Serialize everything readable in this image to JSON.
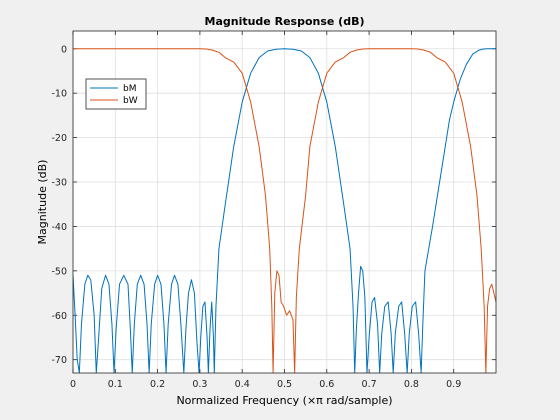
{
  "figure": {
    "background": "#f0f0f0"
  },
  "chart_data": {
    "type": "line",
    "title": "Magnitude Response (dB)",
    "xlabel": "Normalized Frequency (×π rad/sample)",
    "ylabel": "Magnitude (dB)",
    "xlim": [
      0,
      1
    ],
    "ylim": [
      -73,
      4
    ],
    "xticks": [
      0,
      0.1,
      0.2,
      0.3,
      0.4,
      0.5,
      0.6,
      0.7,
      0.8,
      0.9
    ],
    "xtick_labels": [
      "0",
      "0.1",
      "0.2",
      "0.3",
      "0.4",
      "0.5",
      "0.6",
      "0.7",
      "0.8",
      "0.9"
    ],
    "yticks": [
      0,
      -10,
      -20,
      -30,
      -40,
      -50,
      -60,
      -70
    ],
    "ytick_labels": [
      "0",
      "-10",
      "-20",
      "-30",
      "-40",
      "-50",
      "-60",
      "-70"
    ],
    "grid": true,
    "legend_position": "top-left",
    "series": [
      {
        "name": "bM",
        "color": "#0072BD",
        "points": [
          [
            0,
            -51
          ],
          [
            0.005,
            -60
          ],
          [
            0.01,
            -70
          ],
          [
            0.015,
            -73
          ],
          [
            0.02,
            -62
          ],
          [
            0.028,
            -53
          ],
          [
            0.035,
            -51
          ],
          [
            0.042,
            -52
          ],
          [
            0.05,
            -60
          ],
          [
            0.055,
            -73
          ],
          [
            0.06,
            -66
          ],
          [
            0.068,
            -54
          ],
          [
            0.077,
            -51
          ],
          [
            0.085,
            -53
          ],
          [
            0.092,
            -62
          ],
          [
            0.097,
            -73
          ],
          [
            0.102,
            -63
          ],
          [
            0.11,
            -53
          ],
          [
            0.12,
            -51
          ],
          [
            0.13,
            -53
          ],
          [
            0.136,
            -64
          ],
          [
            0.14,
            -73
          ],
          [
            0.145,
            -62
          ],
          [
            0.152,
            -53
          ],
          [
            0.16,
            -51
          ],
          [
            0.168,
            -53
          ],
          [
            0.175,
            -62
          ],
          [
            0.18,
            -73
          ],
          [
            0.185,
            -62
          ],
          [
            0.193,
            -53
          ],
          [
            0.2,
            -51
          ],
          [
            0.208,
            -53
          ],
          [
            0.215,
            -62
          ],
          [
            0.22,
            -73
          ],
          [
            0.225,
            -62
          ],
          [
            0.233,
            -53
          ],
          [
            0.24,
            -51
          ],
          [
            0.248,
            -53
          ],
          [
            0.255,
            -62
          ],
          [
            0.262,
            -73
          ],
          [
            0.267,
            -63
          ],
          [
            0.273,
            -55
          ],
          [
            0.28,
            -52
          ],
          [
            0.287,
            -55
          ],
          [
            0.293,
            -66
          ],
          [
            0.298,
            -73
          ],
          [
            0.302,
            -65
          ],
          [
            0.307,
            -58
          ],
          [
            0.312,
            -57
          ],
          [
            0.317,
            -65
          ],
          [
            0.32,
            -73
          ],
          [
            0.324,
            -63
          ],
          [
            0.328,
            -57
          ],
          [
            0.332,
            -65
          ],
          [
            0.334,
            -73
          ],
          [
            0.338,
            -58
          ],
          [
            0.345,
            -45
          ],
          [
            0.36,
            -35
          ],
          [
            0.38,
            -22
          ],
          [
            0.4,
            -12
          ],
          [
            0.42,
            -5.5
          ],
          [
            0.44,
            -2
          ],
          [
            0.46,
            -0.5
          ],
          [
            0.48,
            -0.1
          ],
          [
            0.5,
            0
          ],
          [
            0.52,
            -0.1
          ],
          [
            0.54,
            -0.5
          ],
          [
            0.56,
            -2
          ],
          [
            0.58,
            -5.5
          ],
          [
            0.6,
            -12
          ],
          [
            0.62,
            -22
          ],
          [
            0.64,
            -35
          ],
          [
            0.655,
            -45
          ],
          [
            0.662,
            -58
          ],
          [
            0.666,
            -73
          ],
          [
            0.67,
            -63
          ],
          [
            0.675,
            -55
          ],
          [
            0.68,
            -49
          ],
          [
            0.685,
            -50
          ],
          [
            0.69,
            -56
          ],
          [
            0.695,
            -73
          ],
          [
            0.7,
            -65
          ],
          [
            0.707,
            -57
          ],
          [
            0.713,
            -56
          ],
          [
            0.72,
            -62
          ],
          [
            0.725,
            -73
          ],
          [
            0.73,
            -64
          ],
          [
            0.737,
            -58
          ],
          [
            0.745,
            -57
          ],
          [
            0.752,
            -64
          ],
          [
            0.757,
            -73
          ],
          [
            0.762,
            -64
          ],
          [
            0.77,
            -58
          ],
          [
            0.777,
            -57
          ],
          [
            0.784,
            -64
          ],
          [
            0.79,
            -73
          ],
          [
            0.795,
            -64
          ],
          [
            0.802,
            -58
          ],
          [
            0.81,
            -57
          ],
          [
            0.817,
            -64
          ],
          [
            0.823,
            -73
          ],
          [
            0.827,
            -62
          ],
          [
            0.832,
            -50
          ],
          [
            0.85,
            -40
          ],
          [
            0.87,
            -28
          ],
          [
            0.89,
            -16
          ],
          [
            0.9,
            -12
          ],
          [
            0.915,
            -7
          ],
          [
            0.93,
            -3.5
          ],
          [
            0.945,
            -1.2
          ],
          [
            0.96,
            -0.3
          ],
          [
            0.97,
            -0.05
          ],
          [
            0.98,
            0
          ],
          [
            1,
            0
          ]
        ]
      },
      {
        "name": "bW",
        "color": "#D95319",
        "points": [
          [
            0,
            0
          ],
          [
            0.3,
            0
          ],
          [
            0.315,
            -0.05
          ],
          [
            0.33,
            -0.3
          ],
          [
            0.345,
            -0.8
          ],
          [
            0.36,
            -2
          ],
          [
            0.38,
            -3
          ],
          [
            0.4,
            -5.5
          ],
          [
            0.42,
            -12
          ],
          [
            0.44,
            -22
          ],
          [
            0.455,
            -33
          ],
          [
            0.465,
            -45
          ],
          [
            0.47,
            -58
          ],
          [
            0.473,
            -73
          ],
          [
            0.477,
            -55
          ],
          [
            0.482,
            -50
          ],
          [
            0.487,
            -51
          ],
          [
            0.492,
            -57
          ],
          [
            0.498,
            -58
          ],
          [
            0.505,
            -60
          ],
          [
            0.512,
            -59
          ],
          [
            0.52,
            -61
          ],
          [
            0.524,
            -73
          ],
          [
            0.528,
            -56
          ],
          [
            0.535,
            -45
          ],
          [
            0.55,
            -33
          ],
          [
            0.56,
            -22
          ],
          [
            0.58,
            -12
          ],
          [
            0.6,
            -5.5
          ],
          [
            0.62,
            -3
          ],
          [
            0.64,
            -2
          ],
          [
            0.655,
            -0.8
          ],
          [
            0.67,
            -0.3
          ],
          [
            0.685,
            -0.05
          ],
          [
            0.7,
            0
          ],
          [
            0.8,
            0
          ],
          [
            0.815,
            -0.05
          ],
          [
            0.83,
            -0.3
          ],
          [
            0.845,
            -0.8
          ],
          [
            0.86,
            -2
          ],
          [
            0.88,
            -3
          ],
          [
            0.9,
            -5.5
          ],
          [
            0.92,
            -12
          ],
          [
            0.94,
            -22
          ],
          [
            0.955,
            -33
          ],
          [
            0.965,
            -45
          ],
          [
            0.972,
            -58
          ],
          [
            0.976,
            -73
          ],
          [
            0.98,
            -58
          ],
          [
            0.985,
            -54
          ],
          [
            0.99,
            -53
          ],
          [
            0.995,
            -55
          ],
          [
            1,
            -57
          ]
        ]
      }
    ]
  }
}
